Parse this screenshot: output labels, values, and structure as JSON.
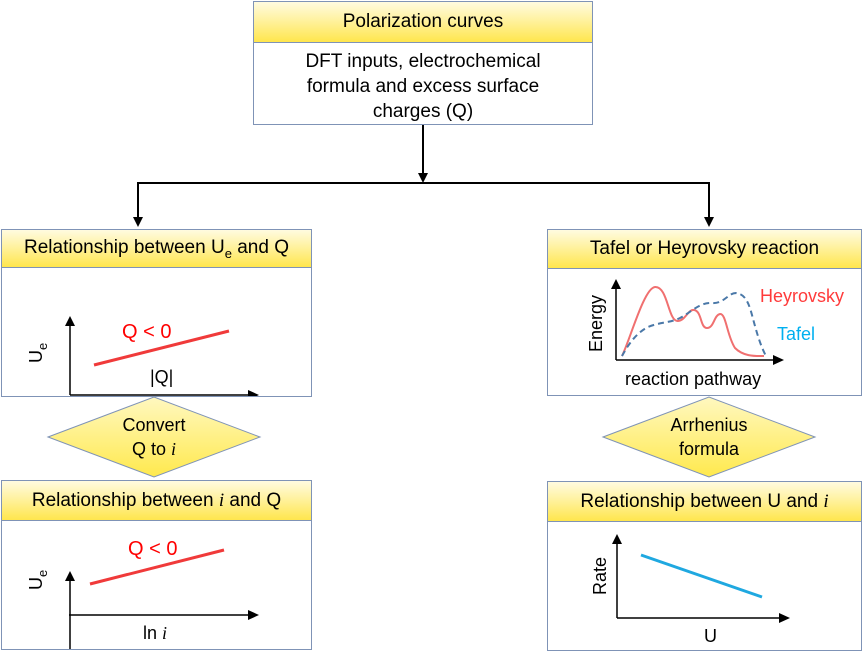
{
  "top": {
    "title": "Polarization curves",
    "line1": "DFT inputs, electrochemical",
    "line2": "formula and excess surface",
    "line3": "charges (Q)"
  },
  "left_top": {
    "title_pre": "Relationship between U",
    "title_sub": "e",
    "title_post": " and Q",
    "y_label": "U",
    "y_label_sub": "e",
    "x_label": "|Q|",
    "annotation": "Q < 0"
  },
  "left_diamond": {
    "line1": "Convert",
    "line2_pre": "Q to ",
    "line2_it": "i"
  },
  "left_bottom": {
    "title_pre": "Relationship between ",
    "title_it": "i",
    "title_post": " and Q",
    "y_label": "U",
    "y_label_sub": "e",
    "x_label_pre": "ln ",
    "x_label_it": "i",
    "annotation": "Q < 0"
  },
  "right_top": {
    "title": "Tafel or Heyrovsky reaction",
    "y_label": "Energy",
    "x_label": "reaction pathway",
    "series_heyrovsky": "Heyrovsky",
    "series_tafel": "Tafel"
  },
  "right_diamond": {
    "line1": "Arrhenius",
    "line2": "formula"
  },
  "right_bottom": {
    "title_pre": "Relationship between U and ",
    "title_it": "i",
    "y_label": "Rate",
    "x_label": "U"
  },
  "colors": {
    "border": "#7f93b6",
    "header_yellow": "#ffe64d",
    "red_line": "#f03a3a",
    "heyrovsky": "#f07070",
    "tafel": "#4a78a8",
    "tafel_text": "#00b0f0",
    "rate_line": "#1fa8e0",
    "diamond_fill": "#fff06a"
  }
}
